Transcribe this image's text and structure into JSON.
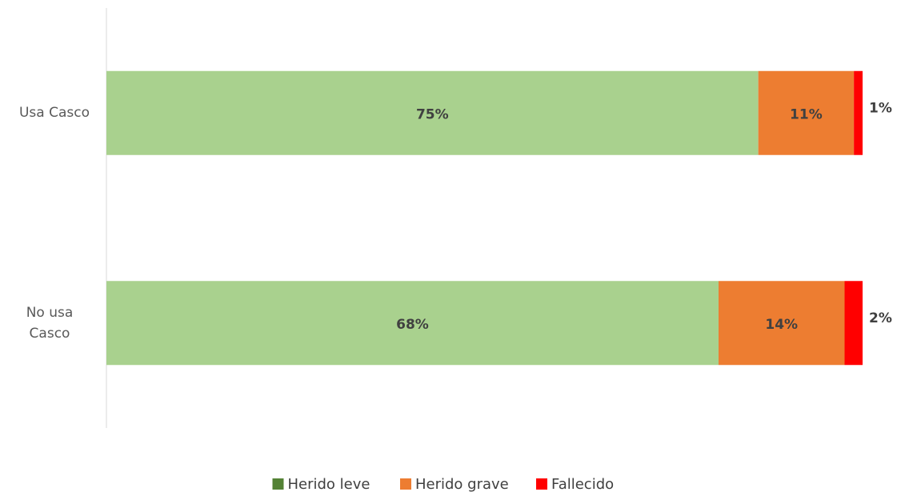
{
  "chart_data": {
    "type": "bar",
    "orientation": "horizontal",
    "stacking": "percent",
    "categories": [
      "Usa Casco",
      "No usa Casco"
    ],
    "series": [
      {
        "name": "Herido leve",
        "color": "#a9d18e",
        "legend_color": "#548235",
        "values": [
          75,
          68
        ],
        "value_labels": [
          "75%",
          "68%"
        ]
      },
      {
        "name": "Herido grave",
        "color": "#ed7d31",
        "values": [
          11,
          14
        ],
        "value_labels": [
          "11%",
          "14%"
        ]
      },
      {
        "name": "Fallecido",
        "color": "#ff0000",
        "values": [
          1,
          2
        ],
        "value_labels": [
          "1%",
          "2%"
        ]
      }
    ],
    "legend": "bottom"
  }
}
